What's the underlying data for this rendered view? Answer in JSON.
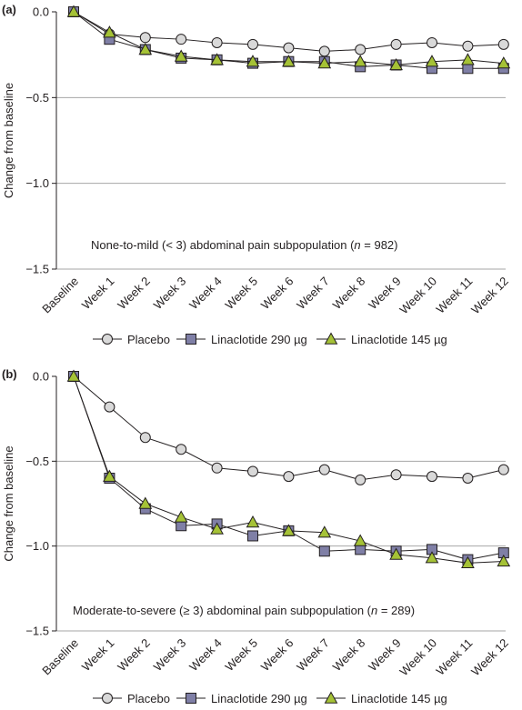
{
  "chart_data": [
    {
      "type": "line",
      "panel_label": "(a)",
      "annotation": {
        "prefix": "None-to-mild (< 3) abdominal pain subpopulation (",
        "n_symbol": "n",
        "suffix": " = 982)"
      },
      "ylabel": "Change from baseline",
      "ylim": [
        -1.5,
        0.0
      ],
      "yticks": [
        0.0,
        -0.5,
        -1.0,
        -1.5
      ],
      "ytick_labels": [
        "0.0",
        "−0.5",
        "−1.0",
        "−1.5"
      ],
      "grid": "horizontal",
      "categories": [
        "Baseline",
        "Week 1",
        "Week 2",
        "Week 3",
        "Week 4",
        "Week 5",
        "Week 6",
        "Week 7",
        "Week 8",
        "Week 9",
        "Week 10",
        "Week 11",
        "Week 12"
      ],
      "series": [
        {
          "name": "Placebo",
          "marker": "circle",
          "color": "#d9d9d9",
          "values": [
            0.0,
            -0.13,
            -0.15,
            -0.16,
            -0.18,
            -0.19,
            -0.21,
            -0.23,
            -0.22,
            -0.19,
            -0.18,
            -0.2,
            -0.19
          ]
        },
        {
          "name": "Linaclotide 290 µg",
          "marker": "square",
          "color": "#7f7fa6",
          "values": [
            0.0,
            -0.16,
            -0.22,
            -0.27,
            -0.28,
            -0.3,
            -0.29,
            -0.29,
            -0.32,
            -0.31,
            -0.33,
            -0.33,
            -0.33
          ]
        },
        {
          "name": "Linaclotide 145 µg",
          "marker": "triangle",
          "color": "#a5c236",
          "values": [
            0.0,
            -0.12,
            -0.22,
            -0.26,
            -0.28,
            -0.29,
            -0.29,
            -0.3,
            -0.29,
            -0.31,
            -0.29,
            -0.28,
            -0.3
          ]
        }
      ]
    },
    {
      "type": "line",
      "panel_label": "(b)",
      "annotation": {
        "prefix": "Moderate-to-severe (≥ 3) abdominal pain subpopulation (",
        "n_symbol": "n",
        "suffix": " = 289)"
      },
      "ylabel": "Change from baseline",
      "ylim": [
        -1.5,
        0.0
      ],
      "yticks": [
        0.0,
        -0.5,
        -1.0,
        -1.5
      ],
      "ytick_labels": [
        "0.0",
        "−0.5",
        "−1.0",
        "−1.5"
      ],
      "grid": "horizontal",
      "categories": [
        "Baseline",
        "Week 1",
        "Week 2",
        "Week 3",
        "Week 4",
        "Week 5",
        "Week 6",
        "Week 7",
        "Week 8",
        "Week 9",
        "Week 10",
        "Week 11",
        "Week 12"
      ],
      "series": [
        {
          "name": "Placebo",
          "marker": "circle",
          "color": "#d9d9d9",
          "values": [
            0.0,
            -0.18,
            -0.36,
            -0.43,
            -0.54,
            -0.56,
            -0.59,
            -0.55,
            -0.61,
            -0.58,
            -0.59,
            -0.6,
            -0.55
          ]
        },
        {
          "name": "Linaclotide 290 µg",
          "marker": "square",
          "color": "#7f7fa6",
          "values": [
            0.0,
            -0.6,
            -0.78,
            -0.88,
            -0.87,
            -0.94,
            -0.91,
            -1.03,
            -1.02,
            -1.03,
            -1.02,
            -1.08,
            -1.04
          ]
        },
        {
          "name": "Linaclotide 145 µg",
          "marker": "triangle",
          "color": "#a5c236",
          "values": [
            0.0,
            -0.59,
            -0.75,
            -0.83,
            -0.9,
            -0.86,
            -0.91,
            -0.92,
            -0.97,
            -1.05,
            -1.07,
            -1.1,
            -1.09
          ]
        }
      ]
    }
  ]
}
